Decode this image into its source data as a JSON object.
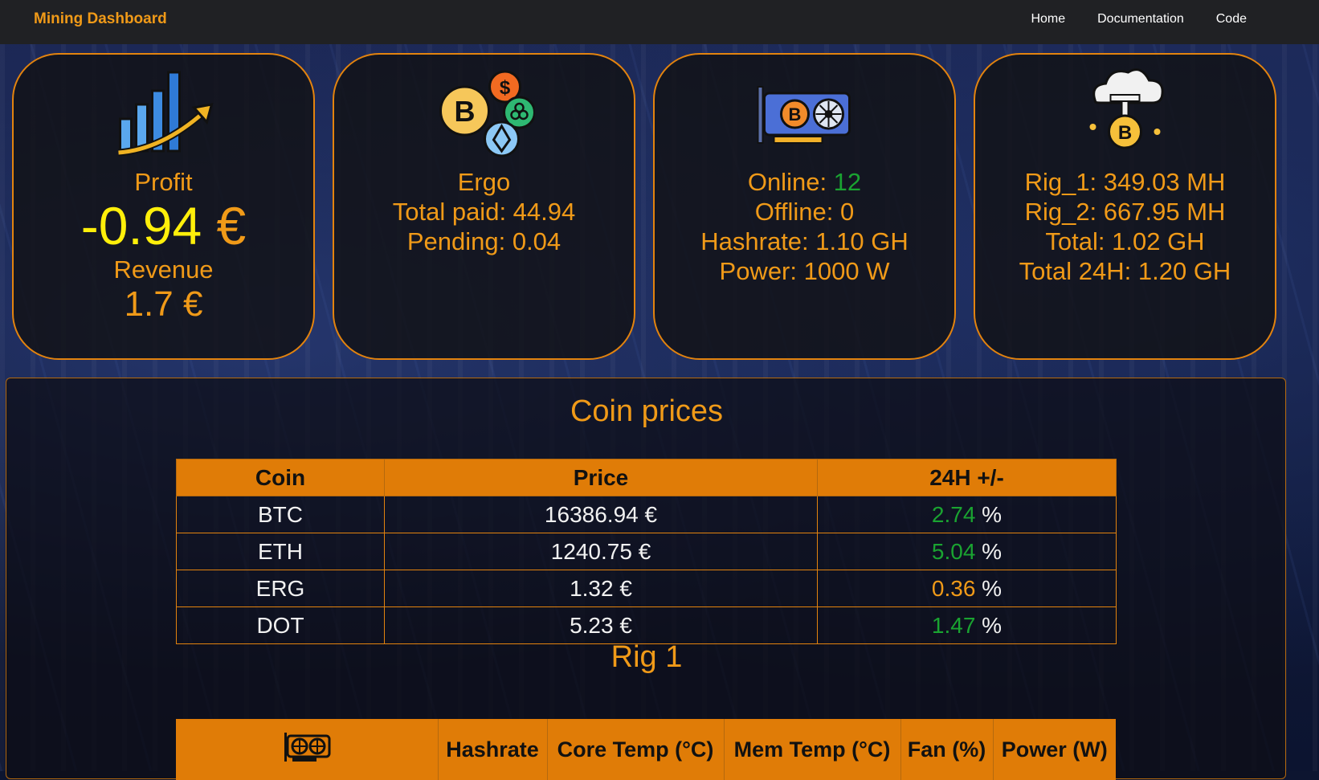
{
  "navbar": {
    "brand": "Mining Dashboard",
    "links": [
      "Home",
      "Documentation",
      "Code"
    ]
  },
  "cards": {
    "profit": {
      "icon": "chart-growth-icon",
      "profit_label": "Profit",
      "profit_number": "-0.94",
      "profit_currency": "€",
      "revenue_label": "Revenue",
      "revenue_value": "1.7 €"
    },
    "pool": {
      "icon": "crypto-coins-icon",
      "name": "Ergo",
      "total_paid_label": "Total paid: ",
      "total_paid_value": "44.94",
      "pending_label": "Pending: ",
      "pending_value": "0.04"
    },
    "rigs": {
      "icon": "gpu-card-icon",
      "online_label": "Online: ",
      "online_value": "12",
      "offline_label": "Offline: ",
      "offline_value": "0",
      "hashrate_label": "Hashrate: ",
      "hashrate_value": "1.10 GH",
      "power_label": "Power: ",
      "power_value": "1000 W"
    },
    "pool_hashrate": {
      "icon": "cloud-mining-icon",
      "lines": [
        {
          "label": "Rig_1: ",
          "value": "349.03 MH"
        },
        {
          "label": "Rig_2: ",
          "value": "667.95 MH"
        },
        {
          "label": "Total: ",
          "value": "1.02 GH"
        },
        {
          "label": "Total 24H: ",
          "value": "1.20 GH"
        }
      ]
    }
  },
  "coin_prices": {
    "title": "Coin prices",
    "headers": [
      "Coin",
      "Price",
      "24H +/-"
    ],
    "rows": [
      {
        "coin": "BTC",
        "price": "16386.94 €",
        "change": "2.74",
        "unit": " %",
        "change_color": "#1aa331"
      },
      {
        "coin": "ETH",
        "price": "1240.75 €",
        "change": "5.04",
        "unit": " %",
        "change_color": "#1aa331"
      },
      {
        "coin": "ERG",
        "price": "1.32 €",
        "change": "0.36",
        "unit": " %",
        "change_color": "#f09a18"
      },
      {
        "coin": "DOT",
        "price": "5.23 €",
        "change": "1.47",
        "unit": " %",
        "change_color": "#1aa331"
      }
    ]
  },
  "rig1": {
    "title": "Rig 1",
    "icon": "gpu-card-icon",
    "headers": [
      "Hashrate",
      "Core Temp (°C)",
      "Mem Temp (°C)",
      "Fan (%)",
      "Power (W)"
    ]
  },
  "colors": {
    "accent": "#f09a18",
    "positive": "#1aa331",
    "highlight": "#ffef0a",
    "header_bg": "#e07c07"
  }
}
